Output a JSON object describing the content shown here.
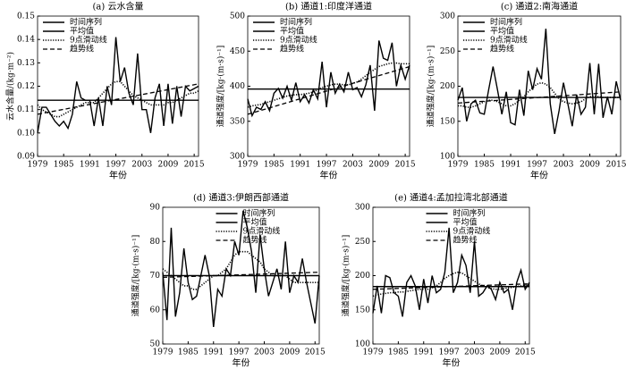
{
  "chart_data": [
    {
      "type": "line",
      "title": "(a) 云水含量",
      "xlabel": "年份",
      "ylabel": "云水含量/(kg·m⁻²)",
      "legend": "upper left",
      "x": [
        1979,
        1980,
        1981,
        1982,
        1983,
        1984,
        1985,
        1986,
        1987,
        1988,
        1989,
        1990,
        1991,
        1992,
        1993,
        1994,
        1995,
        1996,
        1997,
        1998,
        1999,
        2000,
        2001,
        2002,
        2003,
        2004,
        2005,
        2006,
        2007,
        2008,
        2009,
        2010,
        2011,
        2012,
        2013,
        2014,
        2015,
        2016
      ],
      "xlim": [
        1979,
        2016
      ],
      "xticks": [
        1979,
        1985,
        1991,
        1997,
        2003,
        2009,
        2015
      ],
      "ylim": [
        0.09,
        0.15
      ],
      "yticks": [
        0.09,
        {
          "value": 0.1,
          "label": "0.10"
        },
        0.11,
        0.12,
        0.13,
        0.14,
        0.15
      ],
      "series": [
        {
          "name": "时间序列",
          "color": "#000000",
          "dash": "solid",
          "values": [
            0.1,
            0.111,
            0.111,
            0.108,
            0.105,
            0.103,
            0.105,
            0.102,
            0.108,
            0.122,
            0.115,
            0.114,
            0.114,
            0.103,
            0.115,
            0.103,
            0.12,
            0.112,
            0.141,
            0.122,
            0.128,
            0.117,
            0.112,
            0.134,
            0.11,
            0.11,
            0.1,
            0.115,
            0.121,
            0.103,
            0.121,
            0.104,
            0.12,
            0.107,
            0.12,
            0.118,
            0.119,
            0.12
          ]
        },
        {
          "name": "平均值",
          "color": "#000000",
          "dash": "solid",
          "x": [
            1979,
            2016
          ],
          "values": [
            0.114,
            0.114
          ]
        },
        {
          "name": "9点滑动线",
          "color": "#000000",
          "dash": "dotted",
          "values": [
            0.112,
            0.11,
            0.109,
            0.108,
            0.107,
            0.107,
            0.108,
            0.109,
            0.11,
            0.111,
            0.112,
            0.113,
            0.113,
            0.113,
            0.115,
            0.117,
            0.119,
            0.121,
            0.122,
            0.122,
            0.12,
            0.118,
            0.116,
            0.115,
            0.114,
            0.113,
            0.112,
            0.112,
            0.112,
            0.112,
            0.113,
            0.113,
            0.114,
            0.115,
            0.116,
            0.117,
            0.117,
            0.118
          ]
        },
        {
          "name": "趋势线",
          "color": "#000000",
          "dash": "dashed",
          "x": [
            1979,
            2016
          ],
          "values": [
            0.108,
            0.121
          ]
        }
      ]
    },
    {
      "type": "line",
      "title": "(b) 通道1:印度洋通道",
      "xlabel": "年份",
      "ylabel": "通道强度/[kg·(m·s)⁻¹]",
      "legend": "upper left",
      "x": [
        1979,
        1980,
        1981,
        1982,
        1983,
        1984,
        1985,
        1986,
        1987,
        1988,
        1989,
        1990,
        1991,
        1992,
        1993,
        1994,
        1995,
        1996,
        1997,
        1998,
        1999,
        2000,
        2001,
        2002,
        2003,
        2004,
        2005,
        2006,
        2007,
        2008,
        2009,
        2010,
        2011,
        2012,
        2013,
        2014,
        2015,
        2016
      ],
      "xlim": [
        1979,
        2016
      ],
      "xticks": [
        1979,
        1985,
        1991,
        1997,
        2003,
        2009,
        2015
      ],
      "ylim": [
        300,
        500
      ],
      "yticks": [
        300,
        350,
        400,
        450,
        500
      ],
      "series": [
        {
          "name": "时间序列",
          "color": "#000000",
          "dash": "solid",
          "values": [
            382,
            358,
            370,
            367,
            378,
            365,
            390,
            397,
            383,
            400,
            380,
            405,
            378,
            388,
            376,
            395,
            382,
            435,
            370,
            420,
            390,
            403,
            392,
            420,
            395,
            398,
            385,
            402,
            430,
            365,
            465,
            440,
            437,
            462,
            400,
            430,
            410,
            430
          ]
        },
        {
          "name": "平均值",
          "color": "#000000",
          "dash": "solid",
          "x": [
            1979,
            2016
          ],
          "values": [
            396,
            396
          ]
        },
        {
          "name": "9点滑动线",
          "color": "#000000",
          "dash": "dotted",
          "values": [
            370,
            372,
            373,
            374,
            376,
            378,
            380,
            382,
            384,
            386,
            387,
            388,
            388,
            389,
            390,
            392,
            395,
            398,
            400,
            402,
            403,
            403,
            402,
            402,
            404,
            406,
            410,
            415,
            420,
            424,
            428,
            430,
            432,
            433,
            433,
            432,
            432,
            432
          ]
        },
        {
          "name": "趋势线",
          "color": "#000000",
          "dash": "dashed",
          "x": [
            1979,
            2016
          ],
          "values": [
            360,
            428
          ]
        }
      ]
    },
    {
      "type": "line",
      "title": "(c) 通道2:南海通道",
      "xlabel": "年份",
      "ylabel": "通道强度/[kg·(m·s)⁻¹]",
      "legend": "upper left",
      "x": [
        1979,
        1980,
        1981,
        1982,
        1983,
        1984,
        1985,
        1986,
        1987,
        1988,
        1989,
        1990,
        1991,
        1992,
        1993,
        1994,
        1995,
        1996,
        1997,
        1998,
        1999,
        2000,
        2001,
        2002,
        2003,
        2004,
        2005,
        2006,
        2007,
        2008,
        2009,
        2010,
        2011,
        2012,
        2013,
        2014,
        2015,
        2016
      ],
      "xlim": [
        1979,
        2016
      ],
      "xticks": [
        1979,
        1985,
        1991,
        1997,
        2003,
        2009,
        2015
      ],
      "ylim": [
        100,
        300
      ],
      "yticks": [
        100,
        150,
        200,
        250,
        300
      ],
      "series": [
        {
          "name": "时间序列",
          "color": "#000000",
          "dash": "solid",
          "values": [
            180,
            198,
            150,
            175,
            180,
            162,
            160,
            195,
            228,
            195,
            160,
            192,
            148,
            145,
            195,
            158,
            222,
            195,
            225,
            210,
            282,
            175,
            132,
            165,
            205,
            175,
            143,
            188,
            160,
            170,
            233,
            160,
            232,
            155,
            185,
            160,
            207,
            180
          ]
        },
        {
          "name": "平均值",
          "color": "#000000",
          "dash": "solid",
          "x": [
            1979,
            2016
          ],
          "values": [
            184,
            184
          ]
        },
        {
          "name": "9点滑动线",
          "color": "#000000",
          "dash": "dotted",
          "values": [
            172,
            172,
            170,
            170,
            172,
            175,
            178,
            180,
            180,
            178,
            175,
            172,
            172,
            175,
            180,
            185,
            192,
            198,
            203,
            205,
            203,
            198,
            190,
            182,
            178,
            176,
            175,
            176,
            178,
            182,
            185,
            186,
            185,
            184,
            184,
            184,
            184,
            184
          ]
        },
        {
          "name": "趋势线",
          "color": "#000000",
          "dash": "dashed",
          "x": [
            1979,
            2016
          ],
          "values": [
            176,
            192
          ]
        }
      ]
    },
    {
      "type": "line",
      "title": "(d) 通道3:伊朗西部通道",
      "xlabel": "年份",
      "ylabel": "通道强度/[kg·(m·s)⁻¹]",
      "legend": "upper center",
      "x": [
        1979,
        1980,
        1981,
        1982,
        1983,
        1984,
        1985,
        1986,
        1987,
        1988,
        1989,
        1990,
        1991,
        1992,
        1993,
        1994,
        1995,
        1996,
        1997,
        1998,
        1999,
        2000,
        2001,
        2002,
        2003,
        2004,
        2005,
        2006,
        2007,
        2008,
        2009,
        2010,
        2011,
        2012,
        2013,
        2014,
        2015,
        2016
      ],
      "xlim": [
        1979,
        2016
      ],
      "xticks": [
        1979,
        1985,
        1991,
        1997,
        2003,
        2009,
        2015
      ],
      "ylim": [
        50,
        90
      ],
      "yticks": [
        50,
        60,
        70,
        80,
        90
      ],
      "series": [
        {
          "name": "时间序列",
          "color": "#000000",
          "dash": "solid",
          "values": [
            71,
            57,
            84,
            58,
            65,
            78,
            68,
            63,
            64,
            70,
            76,
            70,
            55,
            66,
            64,
            72,
            70,
            80,
            76,
            89,
            84,
            77,
            65,
            82,
            72,
            64,
            68,
            72,
            66,
            80,
            65,
            70,
            68,
            75,
            68,
            62,
            56,
            70
          ]
        },
        {
          "name": "平均值",
          "color": "#000000",
          "dash": "solid",
          "x": [
            1979,
            2016
          ],
          "values": [
            70,
            70
          ]
        },
        {
          "name": "9点滑动线",
          "color": "#000000",
          "dash": "dotted",
          "values": [
            72,
            71,
            70,
            69,
            68,
            67,
            67,
            66,
            66,
            67,
            68,
            69,
            70,
            70,
            71,
            72,
            74,
            76,
            77,
            77,
            77,
            76,
            75,
            74,
            72,
            71,
            70,
            70,
            70,
            70,
            69,
            68,
            68,
            68,
            68,
            68,
            68,
            68
          ]
        },
        {
          "name": "趋势线",
          "color": "#000000",
          "dash": "dashed",
          "x": [
            1979,
            2016
          ],
          "values": [
            69.5,
            71
          ]
        }
      ]
    },
    {
      "type": "line",
      "title": "(e) 通道4:孟加拉湾北部通道",
      "xlabel": "年份",
      "ylabel": "通道强度/[kg·(m·s)⁻¹]",
      "legend": "upper center",
      "x": [
        1979,
        1980,
        1981,
        1982,
        1983,
        1984,
        1985,
        1986,
        1987,
        1988,
        1989,
        1990,
        1991,
        1992,
        1993,
        1994,
        1995,
        1996,
        1997,
        1998,
        1999,
        2000,
        2001,
        2002,
        2003,
        2004,
        2005,
        2006,
        2007,
        2008,
        2009,
        2010,
        2011,
        2012,
        2013,
        2014,
        2015,
        2016
      ],
      "xlim": [
        1979,
        2016
      ],
      "xticks": [
        1979,
        1985,
        1991,
        1997,
        2003,
        2009,
        2015
      ],
      "ylim": [
        100,
        300
      ],
      "yticks": [
        100,
        150,
        200,
        250,
        300
      ],
      "series": [
        {
          "name": "时间序列",
          "color": "#000000",
          "dash": "solid",
          "values": [
            145,
            185,
            145,
            200,
            197,
            175,
            170,
            140,
            190,
            200,
            185,
            150,
            195,
            160,
            200,
            175,
            180,
            205,
            270,
            175,
            190,
            230,
            215,
            175,
            250,
            170,
            175,
            185,
            180,
            165,
            190,
            175,
            180,
            150,
            190,
            208,
            180,
            190
          ]
        },
        {
          "name": "平均值",
          "color": "#000000",
          "dash": "solid",
          "x": [
            1979,
            2016
          ],
          "values": [
            184,
            184
          ]
        },
        {
          "name": "9点滑动线",
          "color": "#000000",
          "dash": "dotted",
          "values": [
            170,
            172,
            173,
            174,
            175,
            175,
            176,
            176,
            177,
            178,
            179,
            180,
            180,
            180,
            182,
            185,
            190,
            196,
            200,
            203,
            205,
            204,
            200,
            196,
            192,
            188,
            185,
            183,
            181,
            180,
            180,
            181,
            182,
            183,
            184,
            185,
            186,
            186
          ]
        },
        {
          "name": "趋势线",
          "color": "#000000",
          "dash": "dashed",
          "x": [
            1979,
            2016
          ],
          "values": [
            180,
            188
          ]
        }
      ]
    }
  ]
}
